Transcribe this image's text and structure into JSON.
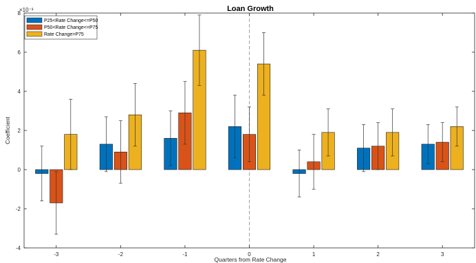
{
  "chart_data": {
    "type": "bar",
    "title": "Loan Growth",
    "xlabel": "Quarters from Rate Change",
    "ylabel": "Coefficient",
    "y_exponent_label": "×10⁻³",
    "categories": [
      "-3",
      "-2",
      "-1",
      "0",
      "1",
      "2",
      "3"
    ],
    "ylim": [
      -4,
      8
    ],
    "yticks": [
      -4,
      -2,
      0,
      2,
      4,
      6,
      8
    ],
    "series": [
      {
        "name": "P25<Rate Change<=P50",
        "color": "#0072BD",
        "values": [
          -0.2,
          1.3,
          1.6,
          2.2,
          -0.2,
          1.1,
          1.3
        ],
        "err_low": [
          -1.6,
          -0.1,
          0.2,
          0.6,
          -1.4,
          -0.1,
          0.3
        ],
        "err_high": [
          1.2,
          2.7,
          3.0,
          3.8,
          1.0,
          2.3,
          2.3
        ]
      },
      {
        "name": "P50<Rate Change<=P75",
        "color": "#D95319",
        "values": [
          -1.7,
          0.9,
          2.9,
          1.8,
          0.4,
          1.2,
          1.4
        ],
        "err_low": [
          -3.3,
          -0.7,
          1.3,
          0.4,
          -1.0,
          0.0,
          0.4
        ],
        "err_high": [
          -0.1,
          2.5,
          4.5,
          3.2,
          1.8,
          2.4,
          2.4
        ]
      },
      {
        "name": "Rate Change>P75",
        "color": "#EDB120",
        "values": [
          1.8,
          2.8,
          6.1,
          5.4,
          1.9,
          1.9,
          2.2
        ],
        "err_low": [
          0.0,
          1.2,
          4.3,
          3.8,
          0.7,
          0.7,
          1.2
        ],
        "err_high": [
          3.6,
          4.4,
          7.9,
          7.0,
          3.1,
          3.1,
          3.2
        ]
      }
    ],
    "reference_line_x": "0",
    "legend_position": "top-left",
    "grid": false
  }
}
